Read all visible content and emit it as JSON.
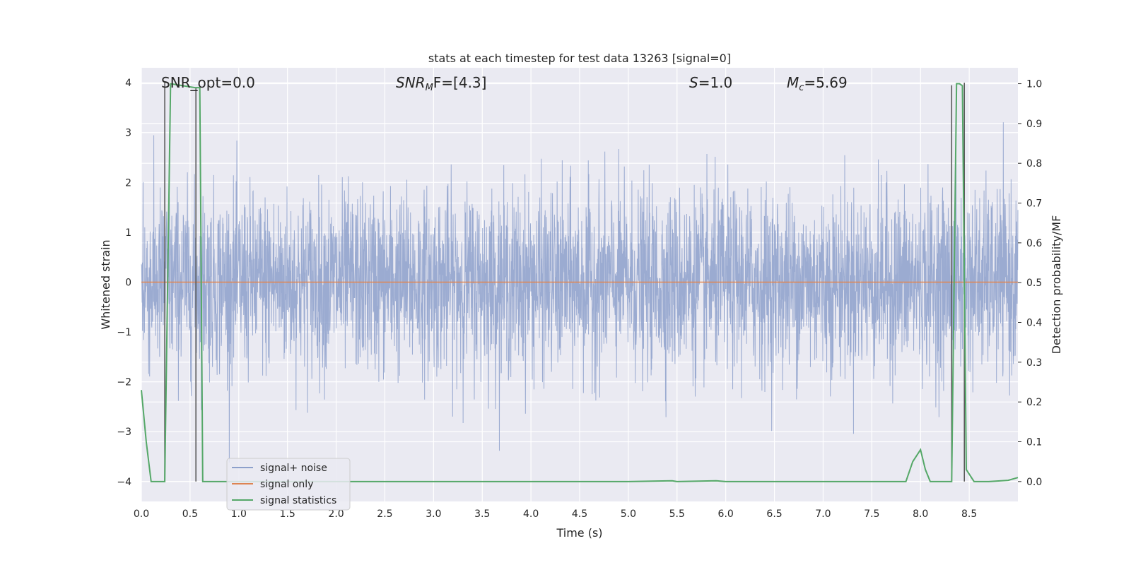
{
  "chart_data": {
    "type": "line",
    "title": "stats at each timestep for test data 13263 [signal=0]",
    "xlabel": "Time (s)",
    "ylabel_left": "Whitened strain",
    "ylabel_right": "Detection probability/MF",
    "xlim": [
      0.0,
      9.0
    ],
    "ylim_left": [
      -4.4,
      4.3
    ],
    "ylim_right": [
      -0.05,
      1.04
    ],
    "x_ticks": [
      "0.0",
      "0.5",
      "1.0",
      "1.5",
      "2.0",
      "2.5",
      "3.0",
      "3.5",
      "4.0",
      "4.5",
      "5.0",
      "5.5",
      "6.0",
      "6.5",
      "7.0",
      "7.5",
      "8.0",
      "8.5"
    ],
    "y_ticks_left": [
      "4",
      "3",
      "2",
      "1",
      "0",
      "−1",
      "−2",
      "−3",
      "−4"
    ],
    "y_ticks_right": [
      "1.0",
      "0.9",
      "0.8",
      "0.7",
      "0.6",
      "0.5",
      "0.4",
      "0.3",
      "0.2",
      "0.1",
      "0.0"
    ],
    "grid": true,
    "legend_position": "lower-left",
    "annotations": {
      "snr_opt": "SNR_opt=0.0",
      "snr_mf_sym": "SNR",
      "snr_mf_sub": "M",
      "snr_mf_rest": "F=[4.3]",
      "s_sym": "S",
      "s_rest": "=1.0",
      "mc_sym": "M",
      "mc_sub": "c",
      "mc_rest": "=5.69"
    },
    "series": [
      {
        "name": "signal+ noise",
        "color": "#8da0cb",
        "noise_envelope": [
          [
            0.0,
            1.6
          ],
          [
            9.0,
            1.6
          ]
        ],
        "note_axis": "left"
      },
      {
        "name": "signal only",
        "color": "#dd8452",
        "constant": 0.0,
        "note_axis": "left"
      },
      {
        "name": "signal statistics",
        "color": "#55a868",
        "note_axis": "right",
        "x": [
          0.0,
          0.05,
          0.1,
          0.24,
          0.3,
          0.55,
          0.6,
          0.63,
          1.0,
          5.0,
          5.45,
          5.5,
          5.9,
          6.0,
          7.0,
          7.85,
          7.92,
          8.0,
          8.05,
          8.1,
          8.25,
          8.32,
          8.37,
          8.4,
          8.43,
          8.47,
          8.55,
          8.7,
          8.9,
          9.0
        ],
        "y": [
          0.23,
          0.1,
          0.0,
          0.0,
          1.0,
          0.99,
          0.99,
          0.0,
          0.0,
          0.0,
          0.002,
          0.0,
          0.002,
          0.0,
          0.0,
          0.0,
          0.05,
          0.08,
          0.03,
          0.0,
          0.0,
          0.0,
          1.0,
          1.0,
          0.995,
          0.03,
          0.0,
          0.0,
          0.003,
          0.01
        ]
      }
    ],
    "vertical_markers": [
      {
        "x": 0.24,
        "y_top": 4.0,
        "color": "#555555"
      },
      {
        "x": 0.56,
        "y_top": 3.9,
        "color": "#555555"
      },
      {
        "x": 8.32,
        "y_top": 3.95,
        "color": "#555555"
      },
      {
        "x": 8.45,
        "y_top": 4.0,
        "color": "#555555"
      }
    ]
  }
}
